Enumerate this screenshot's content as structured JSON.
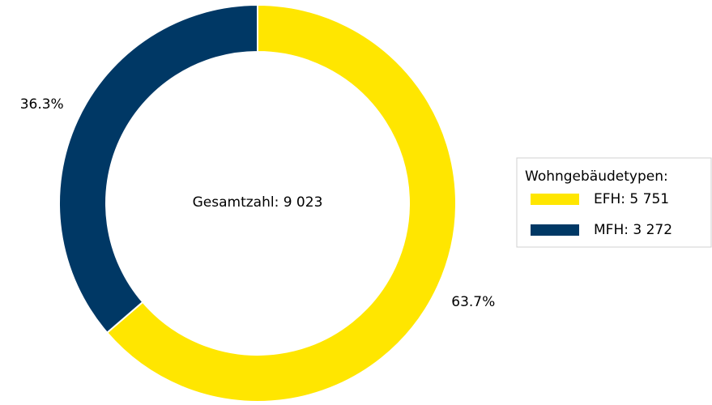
{
  "chart_data": {
    "type": "pie",
    "categories": [
      "EFH: 5 751",
      "MFH: 3 272"
    ],
    "values": [
      63.7,
      36.3
    ],
    "value_labels": [
      "63.7%",
      "36.3%"
    ],
    "colors": [
      "#ffe600",
      "#003865"
    ],
    "donut": true,
    "center_text": "Gesamtzahl: 9 023",
    "legend_title": "Wohngebäudetypen:",
    "legend": "right"
  }
}
